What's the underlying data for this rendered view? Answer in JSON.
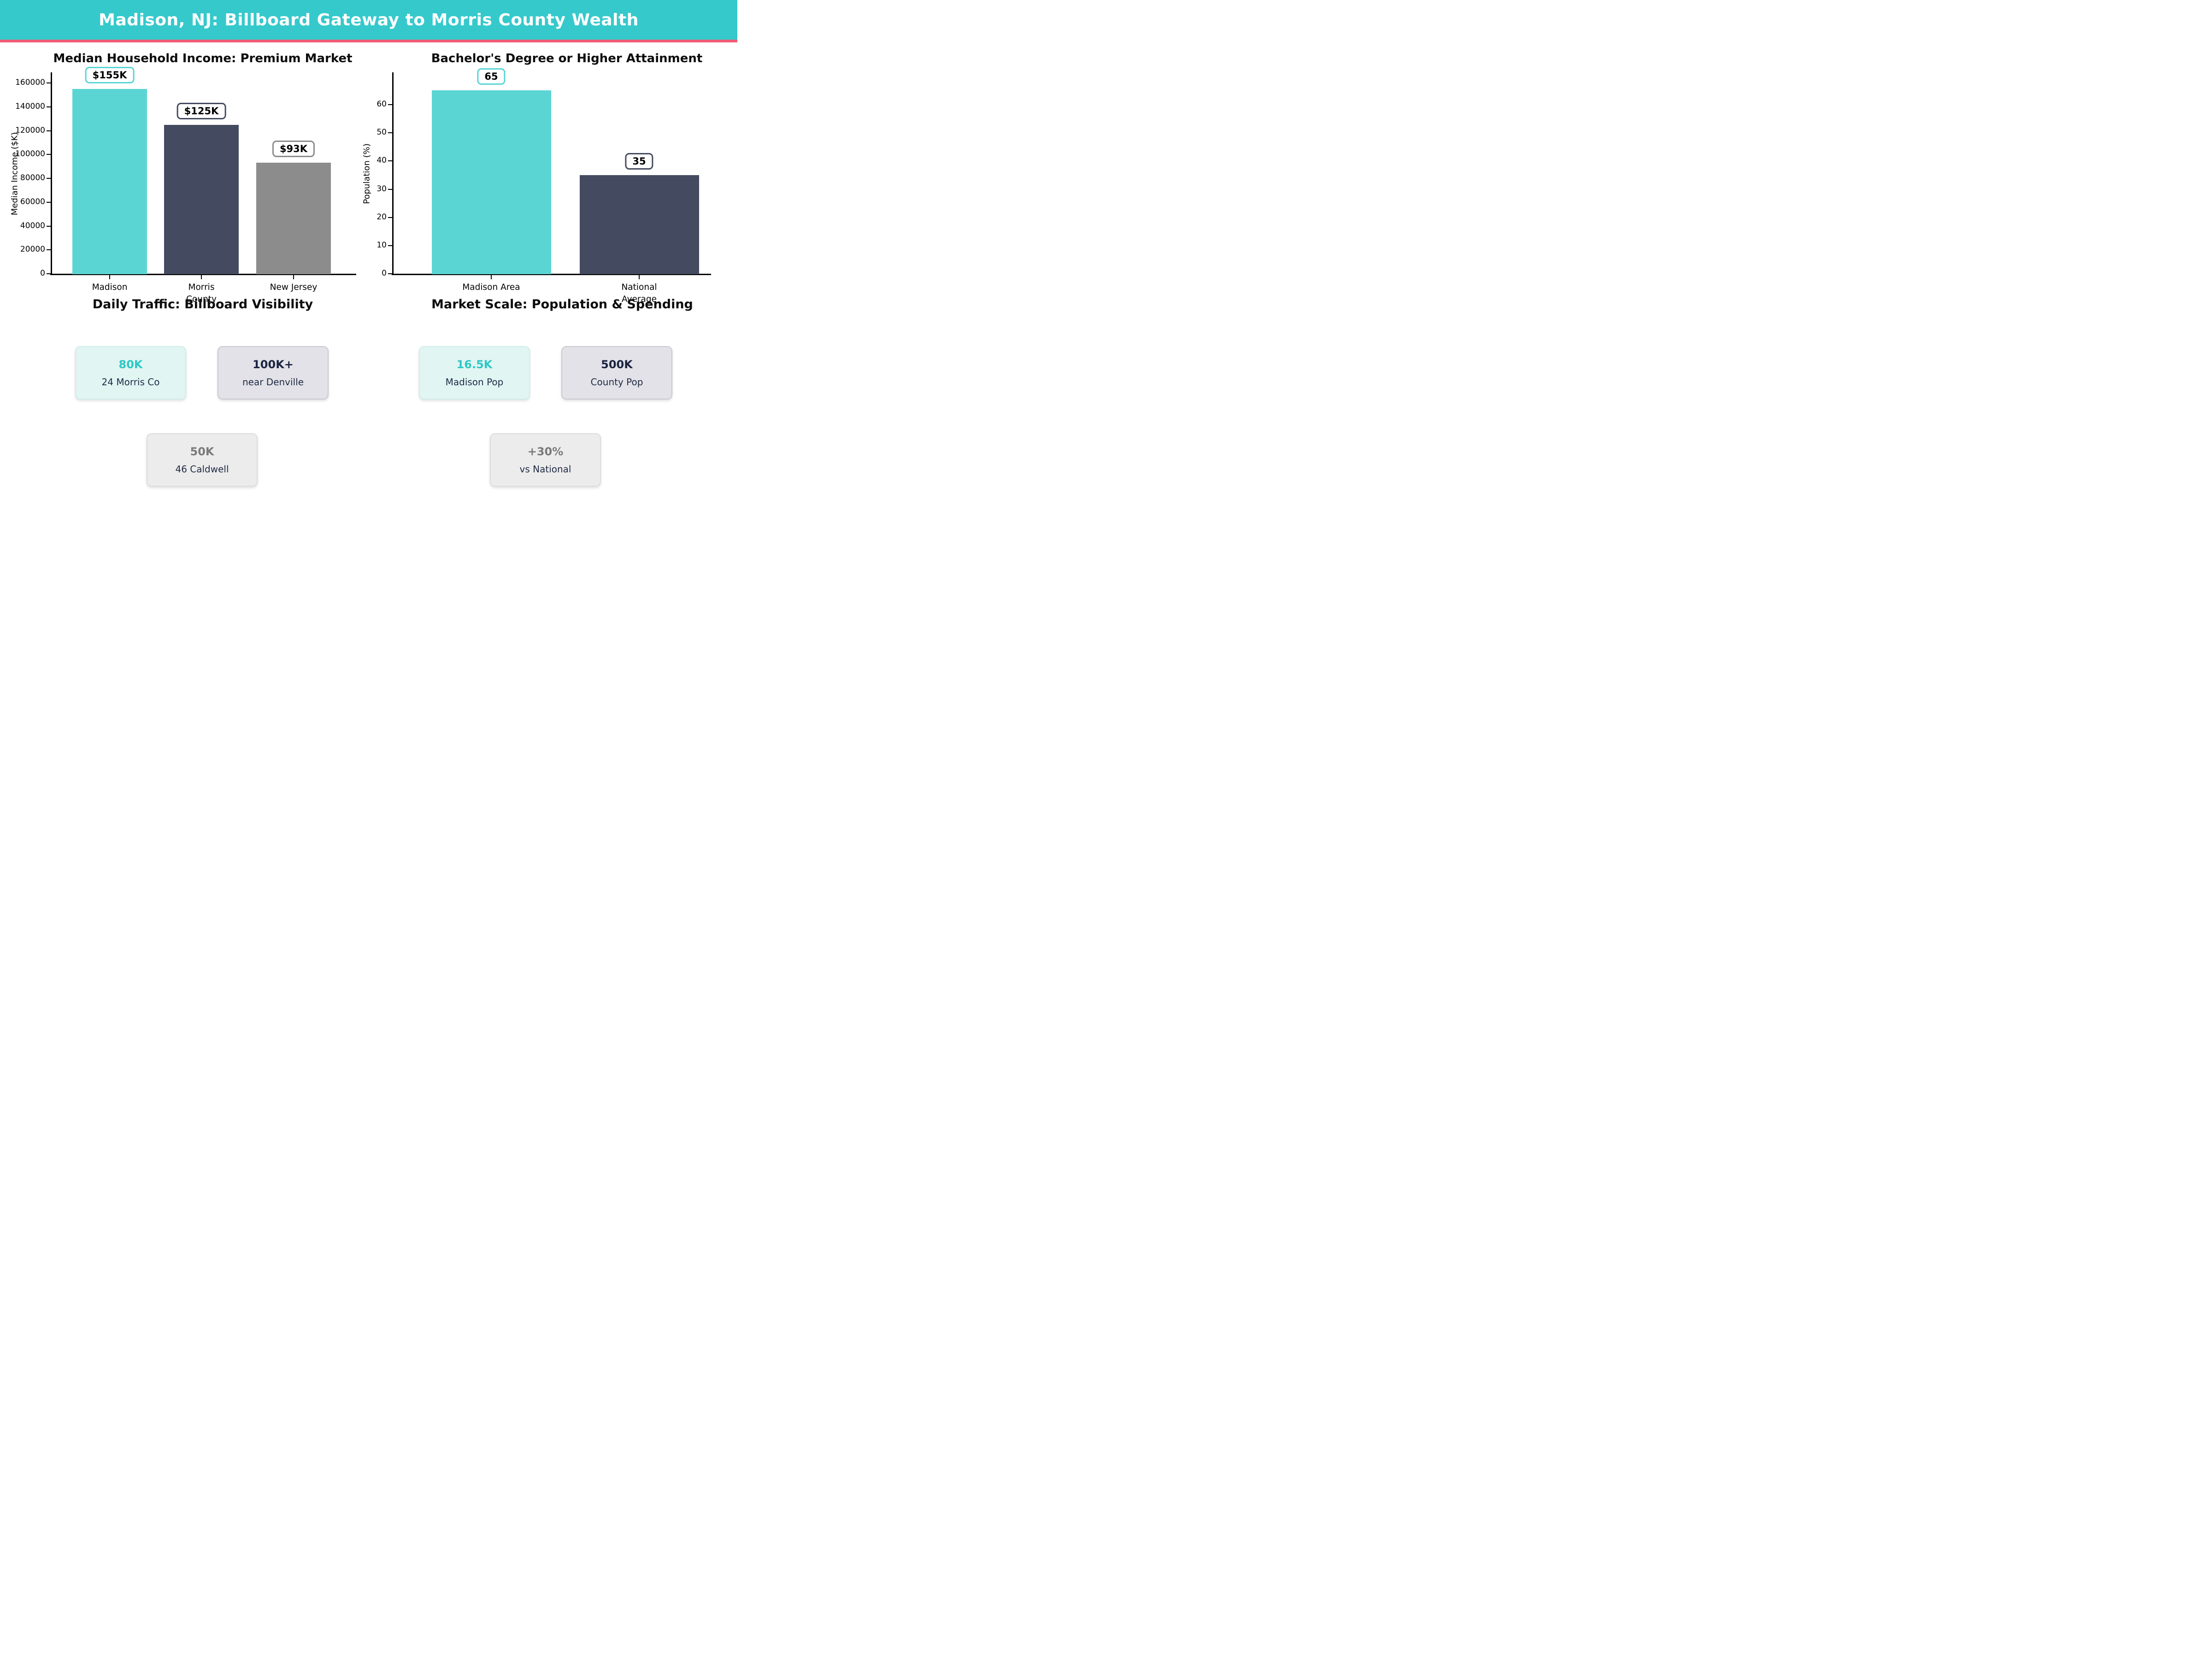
{
  "header": {
    "title": "Madison, NJ: Billboard Gateway to Morris County Wealth"
  },
  "colors": {
    "header_bg": "#35c9cc",
    "divider_pink": "#ef5d75",
    "bar_teal": "#5bd5d3",
    "bar_navy": "#444a5f",
    "bar_gray": "#8c8c8c",
    "card_mint_bg": "#e1f5f3",
    "card_gray_bg": "#e2e2e8",
    "card_light_bg": "#ececec",
    "accent_teal_text": "#2fc8c5",
    "navy_text": "#1f2a44",
    "gray_text": "#7a7a7a"
  },
  "chart_data": [
    {
      "type": "bar",
      "title": "Median Household Income: Premium Market",
      "ylabel": "Median Income ($K)",
      "xlabel": "",
      "categories": [
        "Madison",
        "Morris\nCounty",
        "New Jersey"
      ],
      "values": [
        155000,
        125000,
        93000
      ],
      "bar_labels": [
        "$155K",
        "$125K",
        "$93K"
      ],
      "bar_colors": [
        "#5bd5d3",
        "#444a5f",
        "#8c8c8c"
      ],
      "yticks": [
        0,
        20000,
        40000,
        60000,
        80000,
        100000,
        120000,
        140000,
        160000
      ],
      "ylim": [
        0,
        170000
      ],
      "grid": false,
      "legend": null
    },
    {
      "type": "bar",
      "title": "Bachelor's Degree or Higher Attainment",
      "ylabel": "Population (%)",
      "xlabel": "",
      "categories": [
        "Madison Area",
        "National\nAverage"
      ],
      "values": [
        65,
        35
      ],
      "bar_labels": [
        "65",
        "35"
      ],
      "bar_colors": [
        "#5bd5d3",
        "#444a5f"
      ],
      "yticks": [
        0,
        10,
        20,
        30,
        40,
        50,
        60
      ],
      "ylim": [
        0,
        72
      ],
      "grid": false,
      "legend": null
    }
  ],
  "sections": [
    {
      "title": "Daily Traffic: Billboard Visibility",
      "cards": [
        {
          "value": "80K",
          "label": "24 Morris Co"
        },
        {
          "value": "100K+",
          "label": "near Denville"
        },
        {
          "value": "50K",
          "label": "46 Caldwell"
        }
      ]
    },
    {
      "title": "Market Scale: Population & Spending",
      "cards": [
        {
          "value": "16.5K",
          "label": "Madison Pop"
        },
        {
          "value": "500K",
          "label": "County Pop"
        },
        {
          "value": "+30%",
          "label": "vs National"
        }
      ]
    }
  ]
}
